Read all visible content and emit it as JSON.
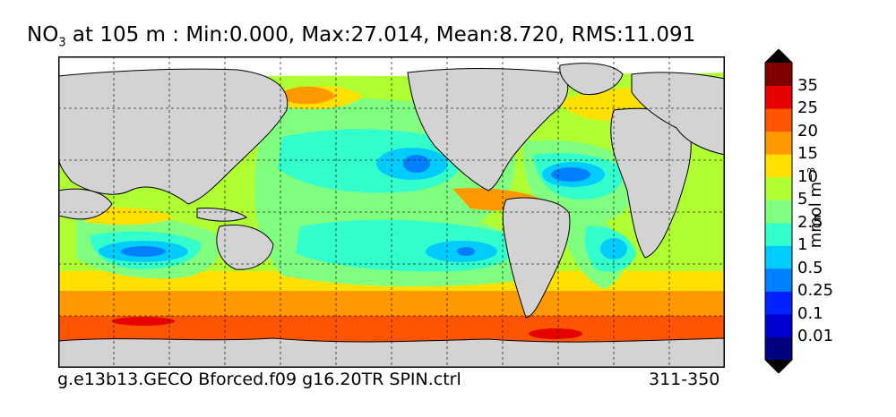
{
  "title": {
    "species_main": "NO",
    "species_sub": "3",
    "rest": " at 105 m : Min:0.000, Max:27.014, Mean:8.720, RMS:11.091"
  },
  "footer": {
    "case": "g.e13b13.GECO Bforced.f09 g16.20TR SPIN.ctrl",
    "years": "311-350"
  },
  "colorbar": {
    "units_main": "mmol m",
    "units_sup": "−3",
    "labels": [
      "35",
      "25",
      "20",
      "15",
      "10",
      "5",
      "2.5",
      "1",
      "0.5",
      "0.25",
      "0.1",
      "0.01"
    ],
    "colors": [
      "#000080",
      "#0000d0",
      "#0022ff",
      "#0080ff",
      "#00ccff",
      "#33ffcc",
      "#80ff80",
      "#b0ff33",
      "#ffe000",
      "#ff9900",
      "#ff5500",
      "#e60000",
      "#800000"
    ]
  },
  "map": {
    "land_color": "#d3d3d3",
    "ocean_base_color": "#ff5500",
    "grid": true
  }
}
